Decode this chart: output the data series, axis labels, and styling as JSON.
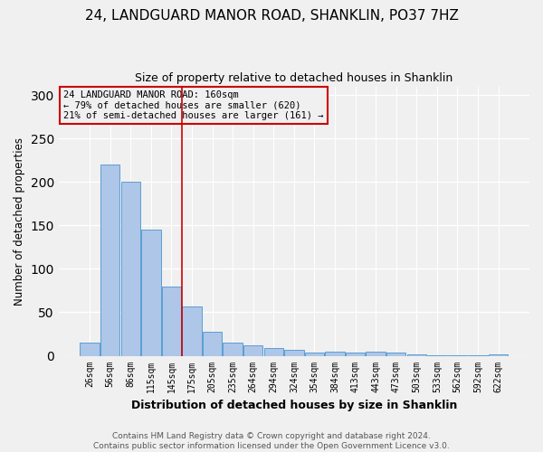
{
  "title": "24, LANDGUARD MANOR ROAD, SHANKLIN, PO37 7HZ",
  "subtitle": "Size of property relative to detached houses in Shanklin",
  "xlabel": "Distribution of detached houses by size in Shanklin",
  "ylabel": "Number of detached properties",
  "bar_labels": [
    "26sqm",
    "56sqm",
    "86sqm",
    "115sqm",
    "145sqm",
    "175sqm",
    "205sqm",
    "235sqm",
    "264sqm",
    "294sqm",
    "324sqm",
    "354sqm",
    "384sqm",
    "413sqm",
    "443sqm",
    "473sqm",
    "503sqm",
    "533sqm",
    "562sqm",
    "592sqm",
    "622sqm"
  ],
  "bar_values": [
    15,
    220,
    200,
    145,
    80,
    57,
    28,
    15,
    12,
    9,
    7,
    4,
    5,
    4,
    5,
    4,
    2,
    1,
    1,
    1,
    2
  ],
  "bar_color": "#aec6e8",
  "bar_edge_color": "#5a9fd4",
  "ylim": [
    0,
    310
  ],
  "yticks": [
    0,
    50,
    100,
    150,
    200,
    250,
    300
  ],
  "property_line_x": 4.5,
  "property_line_color": "#cc0000",
  "annotation_text": "24 LANDGUARD MANOR ROAD: 160sqm\n← 79% of detached houses are smaller (620)\n21% of semi-detached houses are larger (161) →",
  "annotation_box_color": "#cc0000",
  "footer_text": "Contains HM Land Registry data © Crown copyright and database right 2024.\nContains public sector information licensed under the Open Government Licence v3.0.",
  "background_color": "#f0f0f0",
  "grid_color": "#ffffff",
  "title_fontsize": 11,
  "subtitle_fontsize": 9
}
